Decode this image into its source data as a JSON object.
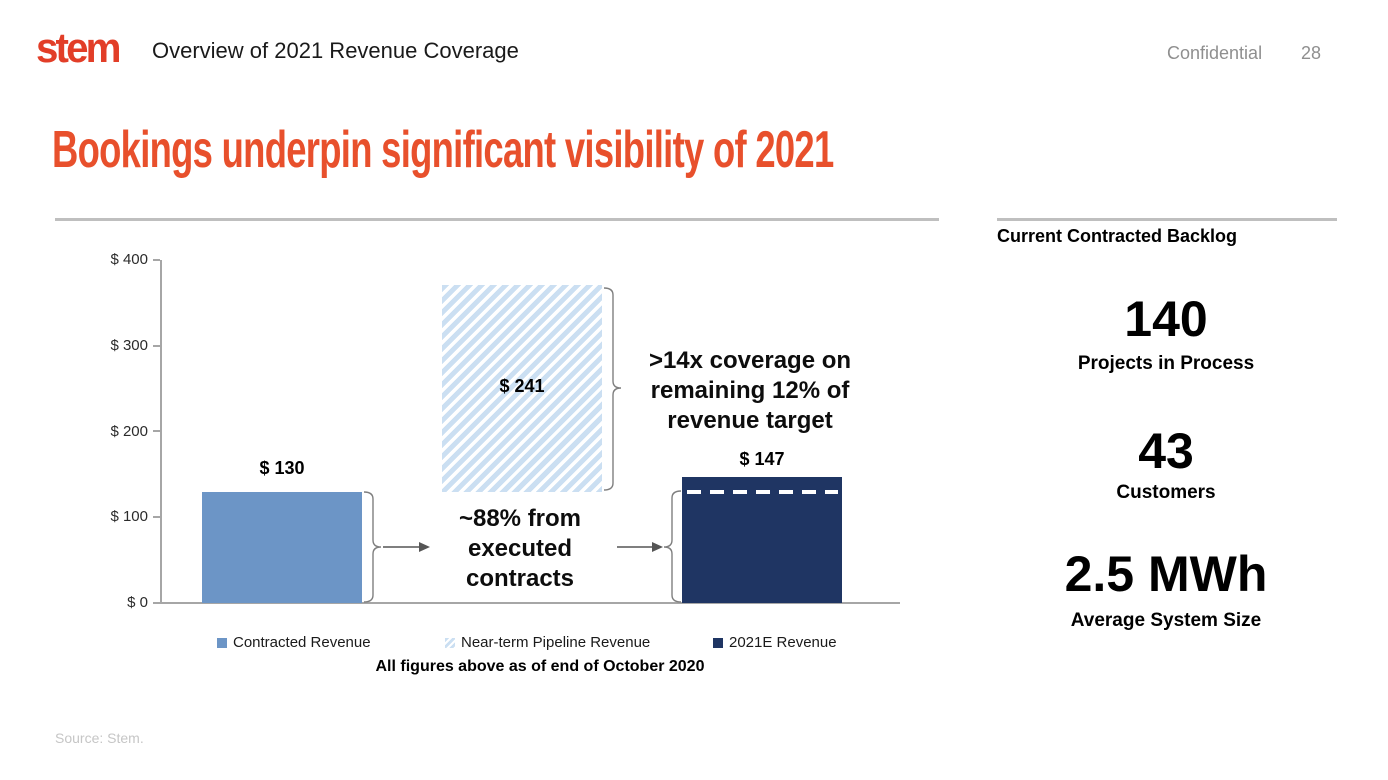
{
  "header": {
    "logo_text": "stem",
    "title": "Overview of 2021 Revenue Coverage",
    "confidential_label": "Confidential",
    "page_number": "28"
  },
  "slide_title": "Bookings underpin significant visibility of 2021",
  "chart_data": {
    "type": "bar",
    "categories": [
      "Contracted Revenue",
      "Near-term Pipeline Revenue",
      "2021E Revenue"
    ],
    "values": [
      130,
      241,
      147
    ],
    "bar_value_labels": [
      "$ 130",
      "$ 241",
      "$ 147"
    ],
    "floating_bar": {
      "series": "Near-term Pipeline Revenue",
      "floats_above": 130
    },
    "dashed_line_value": 130,
    "ylim": [
      0,
      400
    ],
    "y_ticks": [
      "$ 400",
      "$ 300",
      "$ 200",
      "$ 100",
      "$ 0"
    ],
    "grid": false,
    "legend_position": "bottom",
    "legend": [
      {
        "label": "Contracted Revenue",
        "color": "#6C95C6",
        "pattern": "solid"
      },
      {
        "label": "Near-term Pipeline Revenue",
        "color": "#CBDFF2",
        "pattern": "diagonal-hatch"
      },
      {
        "label": "2021E Revenue",
        "color": "#1F3563",
        "pattern": "solid"
      }
    ],
    "annotations": {
      "coverage_line1": ">14x coverage on",
      "coverage_line2": "remaining 12% of",
      "coverage_line3": "revenue target",
      "executed_line1": "~88% from",
      "executed_line2": "executed",
      "executed_line3": "contracts"
    },
    "footnote": "All figures above as of end of October 2020"
  },
  "backlog_panel": {
    "title": "Current Contracted Backlog",
    "stats": [
      {
        "value": "140",
        "label": "Projects in Process"
      },
      {
        "value": "43",
        "label": "Customers"
      },
      {
        "value": "2.5 MWh",
        "label": "Average System Size"
      }
    ]
  },
  "footer": {
    "source": "Source: Stem."
  },
  "colors": {
    "accent_orange": "#E8502C",
    "logo_orange": "#E23E28",
    "bar_blue": "#6C95C6",
    "bar_navy": "#1F3563",
    "hatch_blue": "#CBDFF2",
    "divider_gray": "#BFBFBF",
    "axis_gray": "#A6A6A6",
    "muted_gray": "#8F8F8F",
    "source_gray": "#C6C6C6"
  }
}
